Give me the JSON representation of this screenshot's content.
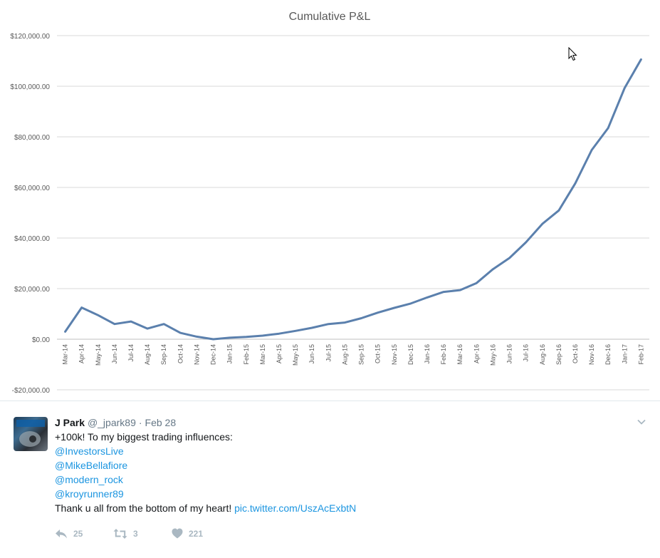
{
  "chart_data": {
    "type": "line",
    "title": "Cumulative P&L",
    "xlabel": "",
    "ylabel": "",
    "ylim": [
      -20000,
      120000
    ],
    "yticks": [
      120000,
      100000,
      80000,
      60000,
      40000,
      20000,
      0,
      -20000
    ],
    "ytick_labels": [
      "$120,000.00",
      "$100,000.00",
      "$80,000.00",
      "$60,000.00",
      "$40,000.00",
      "$20,000.00",
      "$0.00",
      "-$20,000.00"
    ],
    "grid": true,
    "legend": "none",
    "line_color": "#5b80ad",
    "categories": [
      "Mar-14",
      "Apr-14",
      "May-14",
      "Jun-14",
      "Jul-14",
      "Aug-14",
      "Sep-14",
      "Oct-14",
      "Nov-14",
      "Dec-14",
      "Jan-15",
      "Feb-15",
      "Mar-15",
      "Apr-15",
      "May-15",
      "Jun-15",
      "Jul-15",
      "Aug-15",
      "Sep-15",
      "Oct-15",
      "Nov-15",
      "Dec-15",
      "Jan-16",
      "Feb-16",
      "Mar-16",
      "Apr-16",
      "May-16",
      "Jun-16",
      "Jul-16",
      "Aug-16",
      "Sep-16",
      "Oct-16",
      "Nov-16",
      "Dec-16",
      "Jan-17",
      "Feb-17"
    ],
    "values": [
      3000,
      12500,
      9500,
      6000,
      7000,
      4200,
      6000,
      2500,
      1000,
      0,
      600,
      900,
      1400,
      2200,
      3300,
      4500,
      6000,
      6600,
      8300,
      10500,
      12400,
      14100,
      16500,
      18700,
      19400,
      22200,
      27700,
      32100,
      38300,
      45600,
      50900,
      61600,
      74800,
      83500,
      99300,
      110600
    ]
  },
  "tweet": {
    "name": "J Park",
    "handle": "@_jpark89",
    "separator": "·",
    "date": "Feb 28",
    "text_intro": "+100k! To my biggest trading influences:",
    "mentions": [
      "@InvestorsLive",
      "@MikeBellafiore",
      "@modern_rock",
      "@kroyrunner89"
    ],
    "text_outro": "Thank u all from the bottom of my heart!",
    "link": "pic.twitter.com/UszAcExbtN",
    "reply_count": "25",
    "retweet_count": "3",
    "like_count": "221",
    "icons": {
      "reply": "reply-icon",
      "retweet": "retweet-icon",
      "like": "heart-icon",
      "more": "chevron-down-icon",
      "cursor": "mouse-cursor-icon"
    }
  }
}
